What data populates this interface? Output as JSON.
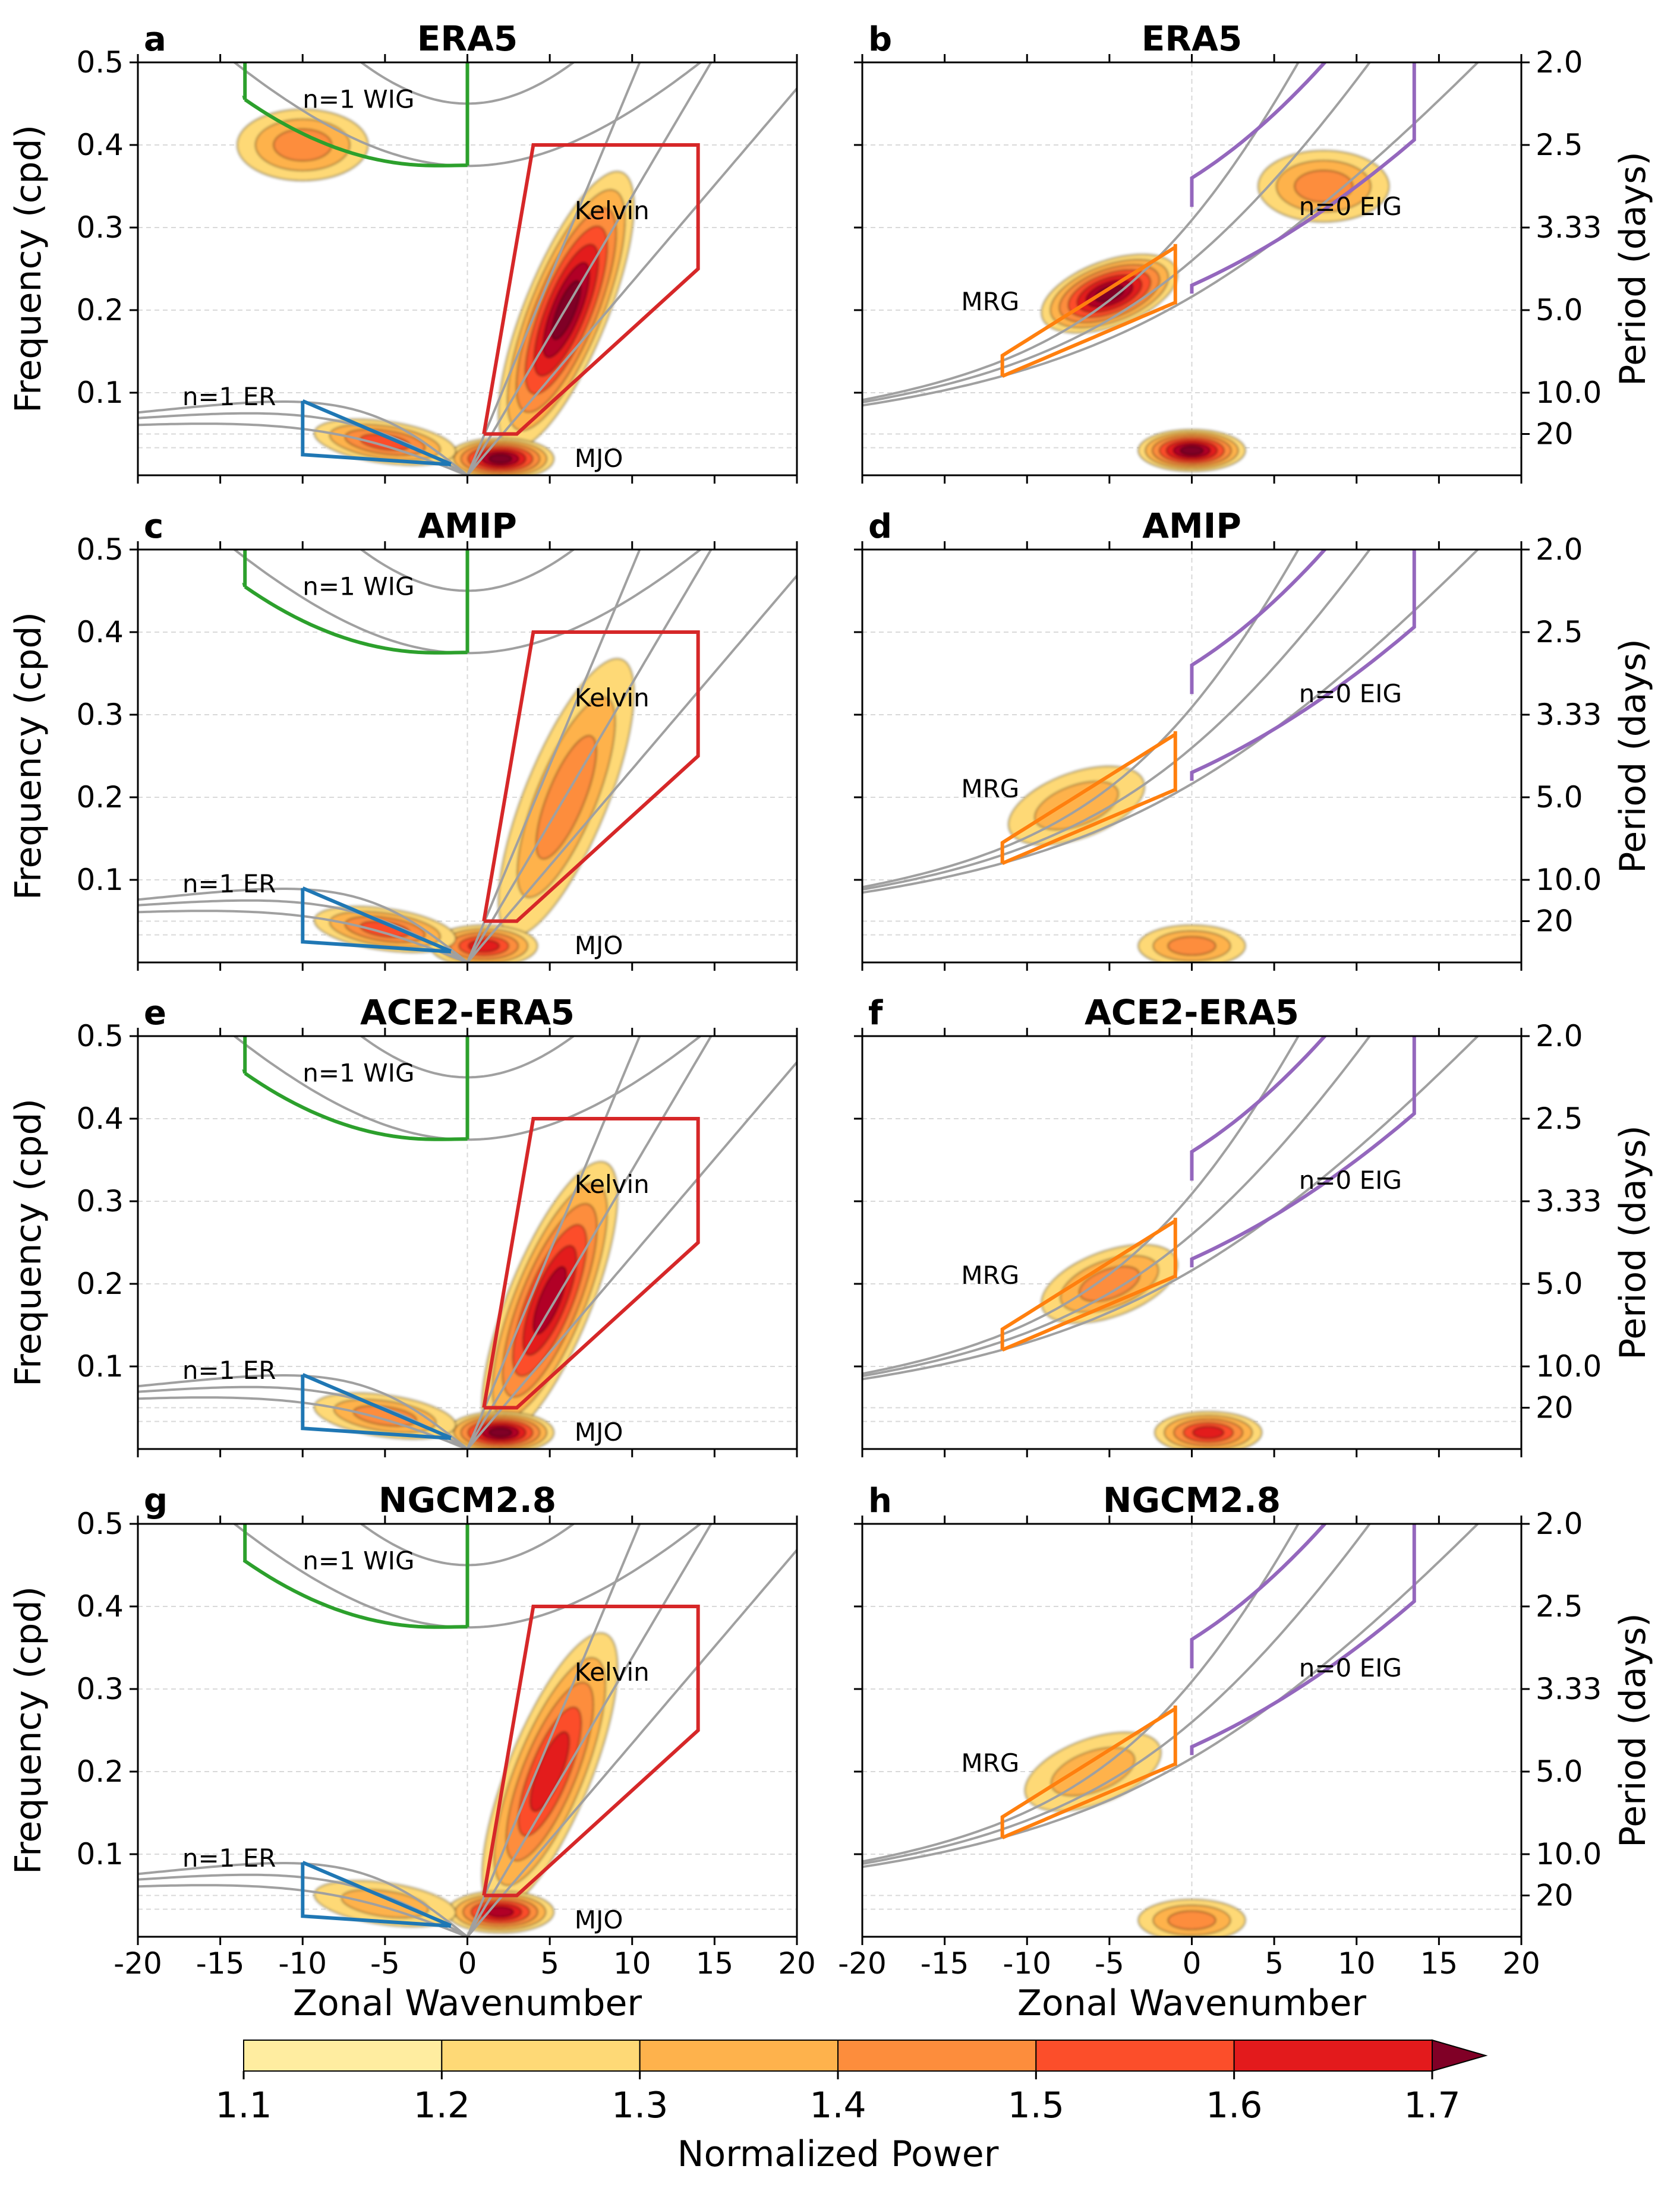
{
  "figure": {
    "colorbar": {
      "label": "Normalized Power",
      "ticks": [
        "1.1",
        "1.2",
        "1.3",
        "1.4",
        "1.5",
        "1.6",
        "1.7"
      ],
      "colors": [
        "#ffeda0",
        "#fed976",
        "#feb24c",
        "#fd8d3c",
        "#fc4e2a",
        "#e31a1c",
        "#b10026",
        "#800026"
      ]
    },
    "labels": {
      "ylabel_left": "Frequency (cpd)",
      "ylabel_right": "Period (days)",
      "xlabel": "Zonal Wavenumber",
      "mjo": "MJO",
      "kelvin": "Kelvin",
      "er": "n=1 ER",
      "wig": "n=1 WIG",
      "mrg": "MRG",
      "eig": "n=0 EIG"
    }
  },
  "chart_data": [
    {
      "panel": "a",
      "title": "ERA5",
      "component": "symmetric",
      "type": "heatmap",
      "xlim": [
        -20,
        20
      ],
      "ylim": [
        0.0,
        0.5
      ],
      "xlabel": "Zonal Wavenumber",
      "ylabel": "Frequency (cpd)",
      "xticks": [
        "-20",
        "-15",
        "-10",
        "-5",
        "0",
        "5",
        "10",
        "15",
        "20"
      ],
      "yticks": [
        "0.1",
        "0.2",
        "0.3",
        "0.4",
        "0.5"
      ],
      "regions": [
        {
          "name": "Kelvin",
          "k": 6,
          "f": 0.2,
          "power": 1.7
        },
        {
          "name": "MJO",
          "k": 2,
          "f": 0.02,
          "power": 1.7
        },
        {
          "name": "n=1 ER",
          "k": -5,
          "f": 0.04,
          "power": 1.4
        },
        {
          "name": "n=1 WIG",
          "k": -10,
          "f": 0.4,
          "power": 1.3
        }
      ]
    },
    {
      "panel": "b",
      "title": "ERA5",
      "component": "antisymmetric",
      "type": "heatmap",
      "xlim": [
        -20,
        20
      ],
      "ylim": [
        0.0,
        0.5
      ],
      "xlabel": "Zonal Wavenumber",
      "ylabel": "Period (days)",
      "xticks": [
        "-20",
        "-15",
        "-10",
        "-5",
        "0",
        "5",
        "10",
        "15",
        "20"
      ],
      "yticks_right": [
        "2.0",
        "2.5",
        "3.33",
        "5.0",
        "10.0",
        "20"
      ],
      "regions": [
        {
          "name": "MRG",
          "k": -5,
          "f": 0.22,
          "power": 1.7
        },
        {
          "name": "n=0 EIG",
          "k": 8,
          "f": 0.35,
          "power": 1.3
        },
        {
          "name": "low frequency",
          "k": 0,
          "f": 0.03,
          "power": 1.7
        }
      ]
    },
    {
      "panel": "c",
      "title": "AMIP",
      "component": "symmetric",
      "type": "heatmap",
      "xlim": [
        -20,
        20
      ],
      "ylim": [
        0.0,
        0.5
      ],
      "regions": [
        {
          "name": "Kelvin",
          "k": 6,
          "f": 0.2,
          "power": 1.3
        },
        {
          "name": "MJO",
          "k": 1,
          "f": 0.02,
          "power": 1.5
        },
        {
          "name": "n=1 ER",
          "k": -5,
          "f": 0.04,
          "power": 1.4
        }
      ]
    },
    {
      "panel": "d",
      "title": "AMIP",
      "component": "antisymmetric",
      "type": "heatmap",
      "xlim": [
        -20,
        20
      ],
      "ylim": [
        0.0,
        0.5
      ],
      "regions": [
        {
          "name": "MRG",
          "k": -7,
          "f": 0.19,
          "power": 1.2
        },
        {
          "name": "low frequency",
          "k": 0,
          "f": 0.02,
          "power": 1.3
        }
      ]
    },
    {
      "panel": "e",
      "title": "ACE2-ERA5",
      "component": "symmetric",
      "type": "heatmap",
      "xlim": [
        -20,
        20
      ],
      "ylim": [
        0.0,
        0.5
      ],
      "regions": [
        {
          "name": "Kelvin",
          "k": 5,
          "f": 0.18,
          "power": 1.6
        },
        {
          "name": "MJO",
          "k": 2,
          "f": 0.02,
          "power": 1.7
        },
        {
          "name": "n=1 ER",
          "k": -5,
          "f": 0.04,
          "power": 1.3
        }
      ]
    },
    {
      "panel": "f",
      "title": "ACE2-ERA5",
      "component": "antisymmetric",
      "type": "heatmap",
      "xlim": [
        -20,
        20
      ],
      "ylim": [
        0.0,
        0.5
      ],
      "regions": [
        {
          "name": "MRG",
          "k": -5,
          "f": 0.2,
          "power": 1.3
        },
        {
          "name": "low frequency",
          "k": 1,
          "f": 0.02,
          "power": 1.5
        }
      ]
    },
    {
      "panel": "g",
      "title": "NGCM2.8",
      "component": "symmetric",
      "type": "heatmap",
      "xlim": [
        -20,
        20
      ],
      "ylim": [
        0.0,
        0.5
      ],
      "regions": [
        {
          "name": "Kelvin",
          "k": 5,
          "f": 0.2,
          "power": 1.5
        },
        {
          "name": "MJO",
          "k": 2,
          "f": 0.03,
          "power": 1.6
        },
        {
          "name": "n=1 ER",
          "k": -5,
          "f": 0.04,
          "power": 1.2
        }
      ]
    },
    {
      "panel": "h",
      "title": "NGCM2.8",
      "component": "antisymmetric",
      "type": "heatmap",
      "xlim": [
        -20,
        20
      ],
      "ylim": [
        0.0,
        0.5
      ],
      "regions": [
        {
          "name": "MRG",
          "k": -6,
          "f": 0.2,
          "power": 1.2
        },
        {
          "name": "low frequency",
          "k": 0,
          "f": 0.02,
          "power": 1.3
        }
      ]
    }
  ]
}
